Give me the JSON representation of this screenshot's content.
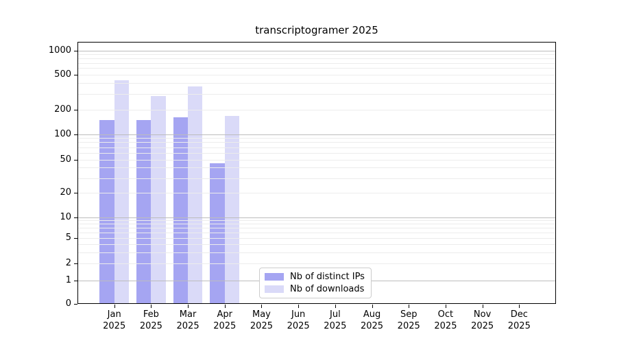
{
  "chart_data": {
    "type": "bar",
    "title": "transcriptogramer 2025",
    "categories": [
      "Jan 2025",
      "Feb 2025",
      "Mar 2025",
      "Apr 2025",
      "May 2025",
      "Jun 2025",
      "Jul 2025",
      "Aug 2025",
      "Sep 2025",
      "Oct 2025",
      "Nov 2025",
      "Dec 2025"
    ],
    "series": [
      {
        "name": "Nb of distinct IPs",
        "color": "#a5a5f2",
        "values": [
          150,
          150,
          160,
          45,
          0,
          0,
          0,
          0,
          0,
          0,
          0,
          0
        ]
      },
      {
        "name": "Nb of downloads",
        "color": "#dadaf8",
        "values": [
          430,
          285,
          365,
          168,
          0,
          0,
          0,
          0,
          0,
          0,
          0,
          0
        ]
      }
    ],
    "yscale": "symlog",
    "yticks": [
      0,
      1,
      2,
      5,
      10,
      20,
      50,
      100,
      200,
      500,
      1000
    ],
    "ylim": [
      0,
      1260
    ],
    "grid": true,
    "legend_position": "lower center"
  },
  "colors": {
    "background": "#ffffff",
    "axis": "#000000",
    "major_grid": "#bcbcbc",
    "minor_grid": "#ececec",
    "legend_border": "#cccccc"
  }
}
